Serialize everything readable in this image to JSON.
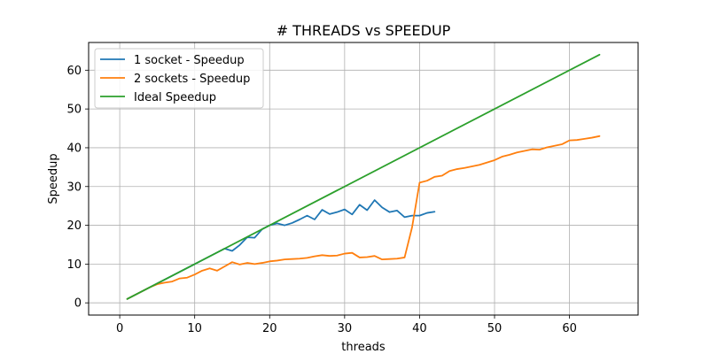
{
  "chart_data": {
    "type": "line",
    "title": "# THREADS vs SPEEDUP",
    "xlabel": "threads",
    "ylabel": "Speedup",
    "xlim": [
      -4.15,
      69.15
    ],
    "ylim": [
      -3.15,
      67.15
    ],
    "xticks": [
      0,
      10,
      20,
      30,
      40,
      50,
      60
    ],
    "yticks": [
      0,
      10,
      20,
      30,
      40,
      50,
      60
    ],
    "grid": true,
    "legend_position": "top-left",
    "series": [
      {
        "name": "1 socket - Speedup",
        "color": "#1f77b4",
        "x": [
          1,
          2,
          3,
          4,
          5,
          6,
          7,
          8,
          9,
          10,
          11,
          12,
          13,
          14,
          15,
          16,
          17,
          18,
          19,
          20,
          21,
          22,
          23,
          24,
          25,
          26,
          27,
          28,
          29,
          30,
          31,
          32,
          33,
          34,
          35,
          36,
          37,
          38,
          39,
          40,
          41,
          42
        ],
        "y": [
          1.0,
          2.0,
          3.0,
          4.0,
          5.0,
          6.0,
          7.0,
          8.0,
          9.0,
          10.0,
          11.0,
          12.0,
          13.0,
          14.0,
          13.4,
          14.9,
          16.9,
          16.8,
          19.0,
          20.0,
          20.5,
          20.0,
          20.6,
          21.5,
          22.5,
          21.5,
          24.0,
          22.9,
          23.4,
          24.1,
          22.8,
          25.3,
          23.9,
          26.5,
          24.6,
          23.4,
          23.8,
          22.1,
          22.5,
          22.5,
          23.2,
          23.5
        ]
      },
      {
        "name": "2 sockets - Speedup",
        "color": "#ff7f0e",
        "x": [
          1,
          2,
          3,
          4,
          5,
          6,
          7,
          8,
          9,
          10,
          11,
          12,
          13,
          14,
          15,
          16,
          17,
          18,
          19,
          20,
          21,
          22,
          23,
          24,
          25,
          26,
          27,
          28,
          29,
          30,
          31,
          32,
          33,
          34,
          35,
          36,
          37,
          38,
          39,
          40,
          41,
          42,
          43,
          44,
          45,
          46,
          47,
          48,
          49,
          50,
          51,
          52,
          53,
          54,
          55,
          56,
          57,
          58,
          59,
          60,
          61,
          62,
          63,
          64
        ],
        "y": [
          1.0,
          2.0,
          3.0,
          4.0,
          4.8,
          5.2,
          5.5,
          6.3,
          6.5,
          7.3,
          8.3,
          8.9,
          8.3,
          9.4,
          10.5,
          9.9,
          10.3,
          10.0,
          10.3,
          10.7,
          10.9,
          11.2,
          11.3,
          11.4,
          11.6,
          12.0,
          12.3,
          12.1,
          12.2,
          12.7,
          12.9,
          11.7,
          11.8,
          12.1,
          11.2,
          11.3,
          11.4,
          11.7,
          19.5,
          31.0,
          31.5,
          32.5,
          32.8,
          34.0,
          34.5,
          34.8,
          35.2,
          35.6,
          36.2,
          36.8,
          37.7,
          38.2,
          38.8,
          39.2,
          39.6,
          39.5,
          40.1,
          40.5,
          40.9,
          41.9,
          42.0,
          42.3,
          42.6,
          43.0
        ]
      },
      {
        "name": "Ideal Speedup",
        "color": "#2ca02c",
        "x": [
          1,
          64
        ],
        "y": [
          1,
          64
        ]
      }
    ]
  }
}
